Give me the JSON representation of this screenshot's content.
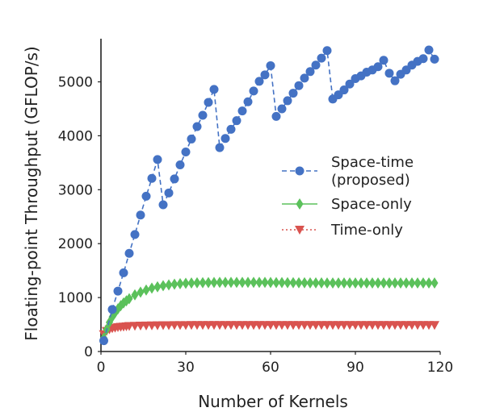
{
  "chart_data": {
    "type": "line",
    "title": "",
    "xlabel": "Number of Kernels",
    "ylabel": "Floating-point Throughput (GFLOP/s)",
    "xlim": [
      0,
      120
    ],
    "ylim": [
      0,
      5800
    ],
    "xticks": [
      0,
      30,
      60,
      90,
      120
    ],
    "yticks": [
      0,
      1000,
      2000,
      3000,
      4000,
      5000
    ],
    "grid": false,
    "legend_position": "center-right",
    "series": [
      {
        "name": "Space-time\n(proposed)",
        "color": "#4472c4",
        "line_style": "dashed",
        "marker": "circle",
        "x": [
          1,
          4,
          6,
          8,
          10,
          12,
          14,
          16,
          18,
          20,
          22,
          24,
          26,
          28,
          30,
          32,
          34,
          36,
          38,
          40,
          42,
          44,
          46,
          48,
          50,
          52,
          54,
          56,
          58,
          60,
          62,
          64,
          66,
          68,
          70,
          72,
          74,
          76,
          78,
          80,
          82,
          84,
          86,
          88,
          90,
          92,
          94,
          96,
          98,
          100,
          102,
          104,
          106,
          108,
          110,
          112,
          114,
          116,
          118
        ],
        "y": [
          200,
          780,
          1120,
          1460,
          1820,
          2170,
          2530,
          2880,
          3210,
          3560,
          2720,
          2940,
          3200,
          3460,
          3700,
          3940,
          4170,
          4380,
          4620,
          4860,
          3780,
          3950,
          4120,
          4280,
          4460,
          4630,
          4830,
          5010,
          5130,
          5300,
          4360,
          4500,
          4650,
          4790,
          4930,
          5070,
          5190,
          5310,
          5440,
          5580,
          4680,
          4760,
          4850,
          4960,
          5060,
          5110,
          5180,
          5220,
          5280,
          5400,
          5160,
          5020,
          5140,
          5220,
          5310,
          5380,
          5430,
          5590,
          5420
        ]
      },
      {
        "name": "Space-only",
        "color": "#5bc15b",
        "line_style": "solid",
        "marker": "diamond",
        "x": [
          1,
          2,
          3,
          4,
          5,
          6,
          7,
          8,
          9,
          10,
          12,
          14,
          16,
          18,
          20,
          22,
          24,
          26,
          28,
          30,
          32,
          34,
          36,
          38,
          40,
          42,
          44,
          46,
          48,
          50,
          52,
          54,
          56,
          58,
          60,
          62,
          64,
          66,
          68,
          70,
          72,
          74,
          76,
          78,
          80,
          82,
          84,
          86,
          88,
          90,
          92,
          94,
          96,
          98,
          100,
          102,
          104,
          106,
          108,
          110,
          112,
          114,
          116,
          118
        ],
        "y": [
          250,
          410,
          540,
          640,
          720,
          790,
          850,
          900,
          940,
          980,
          1050,
          1100,
          1140,
          1175,
          1200,
          1220,
          1235,
          1248,
          1258,
          1265,
          1270,
          1274,
          1277,
          1279,
          1280,
          1281,
          1282,
          1282,
          1282,
          1282,
          1282,
          1282,
          1282,
          1281,
          1280,
          1279,
          1278,
          1277,
          1276,
          1275,
          1274,
          1273,
          1272,
          1272,
          1271,
          1271,
          1270,
          1270,
          1270,
          1270,
          1270,
          1270,
          1270,
          1270,
          1270,
          1270,
          1270,
          1270,
          1270,
          1270,
          1270,
          1270,
          1270,
          1270
        ]
      },
      {
        "name": "Time-only",
        "color": "#d9534f",
        "line_style": "dotted",
        "marker": "triangle-down",
        "x": [
          1,
          2,
          3,
          4,
          5,
          6,
          7,
          8,
          9,
          10,
          12,
          14,
          16,
          18,
          20,
          22,
          24,
          26,
          28,
          30,
          32,
          34,
          36,
          38,
          40,
          42,
          44,
          46,
          48,
          50,
          52,
          54,
          56,
          58,
          60,
          62,
          64,
          66,
          68,
          70,
          72,
          74,
          76,
          78,
          80,
          82,
          84,
          86,
          88,
          90,
          92,
          94,
          96,
          98,
          100,
          102,
          104,
          106,
          108,
          110,
          112,
          114,
          116,
          118
        ],
        "y": [
          320,
          380,
          410,
          430,
          440,
          450,
          455,
          460,
          465,
          470,
          475,
          478,
          480,
          482,
          484,
          485,
          486,
          487,
          488,
          488,
          489,
          489,
          490,
          490,
          490,
          490,
          490,
          490,
          490,
          490,
          490,
          490,
          490,
          490,
          490,
          490,
          490,
          490,
          490,
          490,
          490,
          490,
          490,
          490,
          490,
          490,
          490,
          490,
          490,
          490,
          490,
          490,
          490,
          490,
          490,
          490,
          490,
          490,
          490,
          490,
          490,
          490,
          490,
          490
        ]
      }
    ]
  }
}
